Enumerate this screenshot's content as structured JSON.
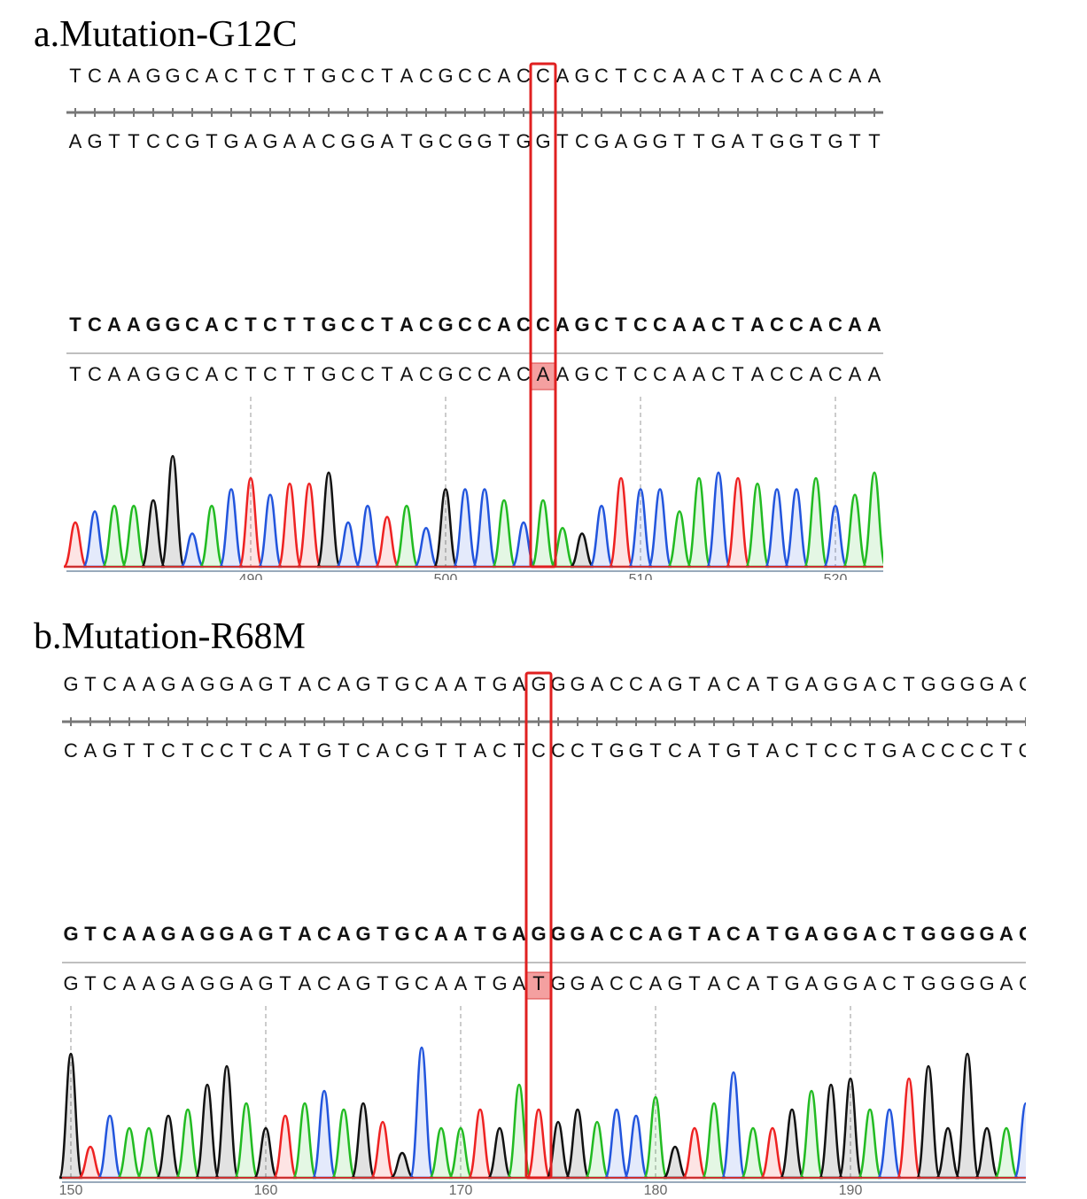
{
  "panels": [
    {
      "title": "a.Mutation-G12C",
      "reference": "TCAAGGCACTCTTGCCTACGCCACCAGCTCCAACTACCACAA",
      "complement": "AGTTCCGTGAGAACGGATGCGGTGGTCGAGGTTGATGGTGTT",
      "consensus": "TCAAGGCACTCTTGCCTACGCCACCAGCTCCAACTACCACAA",
      "sample": "TCAAGGCACTCTTGCCTACGCCACAAGCTCCAACTACCACAA",
      "ticks": [
        490,
        500,
        510,
        520
      ],
      "peaks": [
        40,
        50,
        55,
        55,
        60,
        100,
        30,
        55,
        70,
        80,
        65,
        75,
        75,
        85,
        40,
        55,
        45,
        55,
        35,
        70,
        70,
        70,
        60,
        40,
        60,
        35,
        30,
        55,
        80,
        70,
        70,
        50,
        80,
        85,
        80,
        75,
        70,
        70,
        80,
        55,
        65,
        85
      ]
    },
    {
      "title": "b.Mutation-R68M",
      "reference": "GTCAAGAGGAGTACAGTGCAATGAGGGACCAGTACATGAGGACTGGGGAC",
      "complement": "CAGTTCTCCTCATGTCACGTTACTCCCTGGTCATGTACTCCTGACCCCTG",
      "consensus": "GTCAAGAGGAGTACAGTGCAATGAGGGACCAGTACATGAGGACTGGGGAC",
      "sample": "GTCAAGAGGAGTACAGTGCAATGATGGACCAGTACATGAGGACTGGGGAC",
      "ticks": [
        150,
        160,
        170,
        180,
        190
      ],
      "peaks": [
        100,
        25,
        50,
        40,
        40,
        50,
        55,
        75,
        90,
        60,
        40,
        50,
        60,
        70,
        55,
        60,
        45,
        20,
        105,
        40,
        40,
        55,
        40,
        75,
        55,
        45,
        55,
        45,
        55,
        50,
        65,
        25,
        40,
        60,
        85,
        40,
        40,
        55,
        70,
        75,
        80,
        55,
        55,
        80,
        90,
        40,
        100,
        40,
        40,
        60
      ]
    }
  ]
}
